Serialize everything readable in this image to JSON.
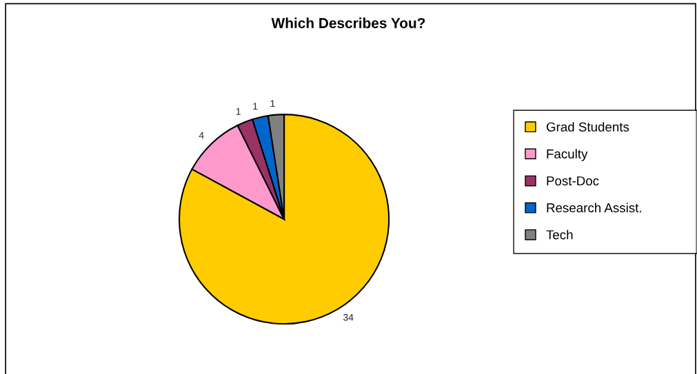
{
  "chart_data": {
    "type": "pie",
    "title": "Which Describes You?",
    "categories": [
      "Grad Students",
      "Faculty",
      "Post-Doc",
      "Research Assist.",
      "Tech"
    ],
    "values": [
      34,
      4,
      1,
      1,
      1
    ],
    "colors": [
      "#ffcc00",
      "#ff99cc",
      "#993366",
      "#0066cc",
      "#808080"
    ],
    "data_labels": true,
    "legend": "right"
  }
}
